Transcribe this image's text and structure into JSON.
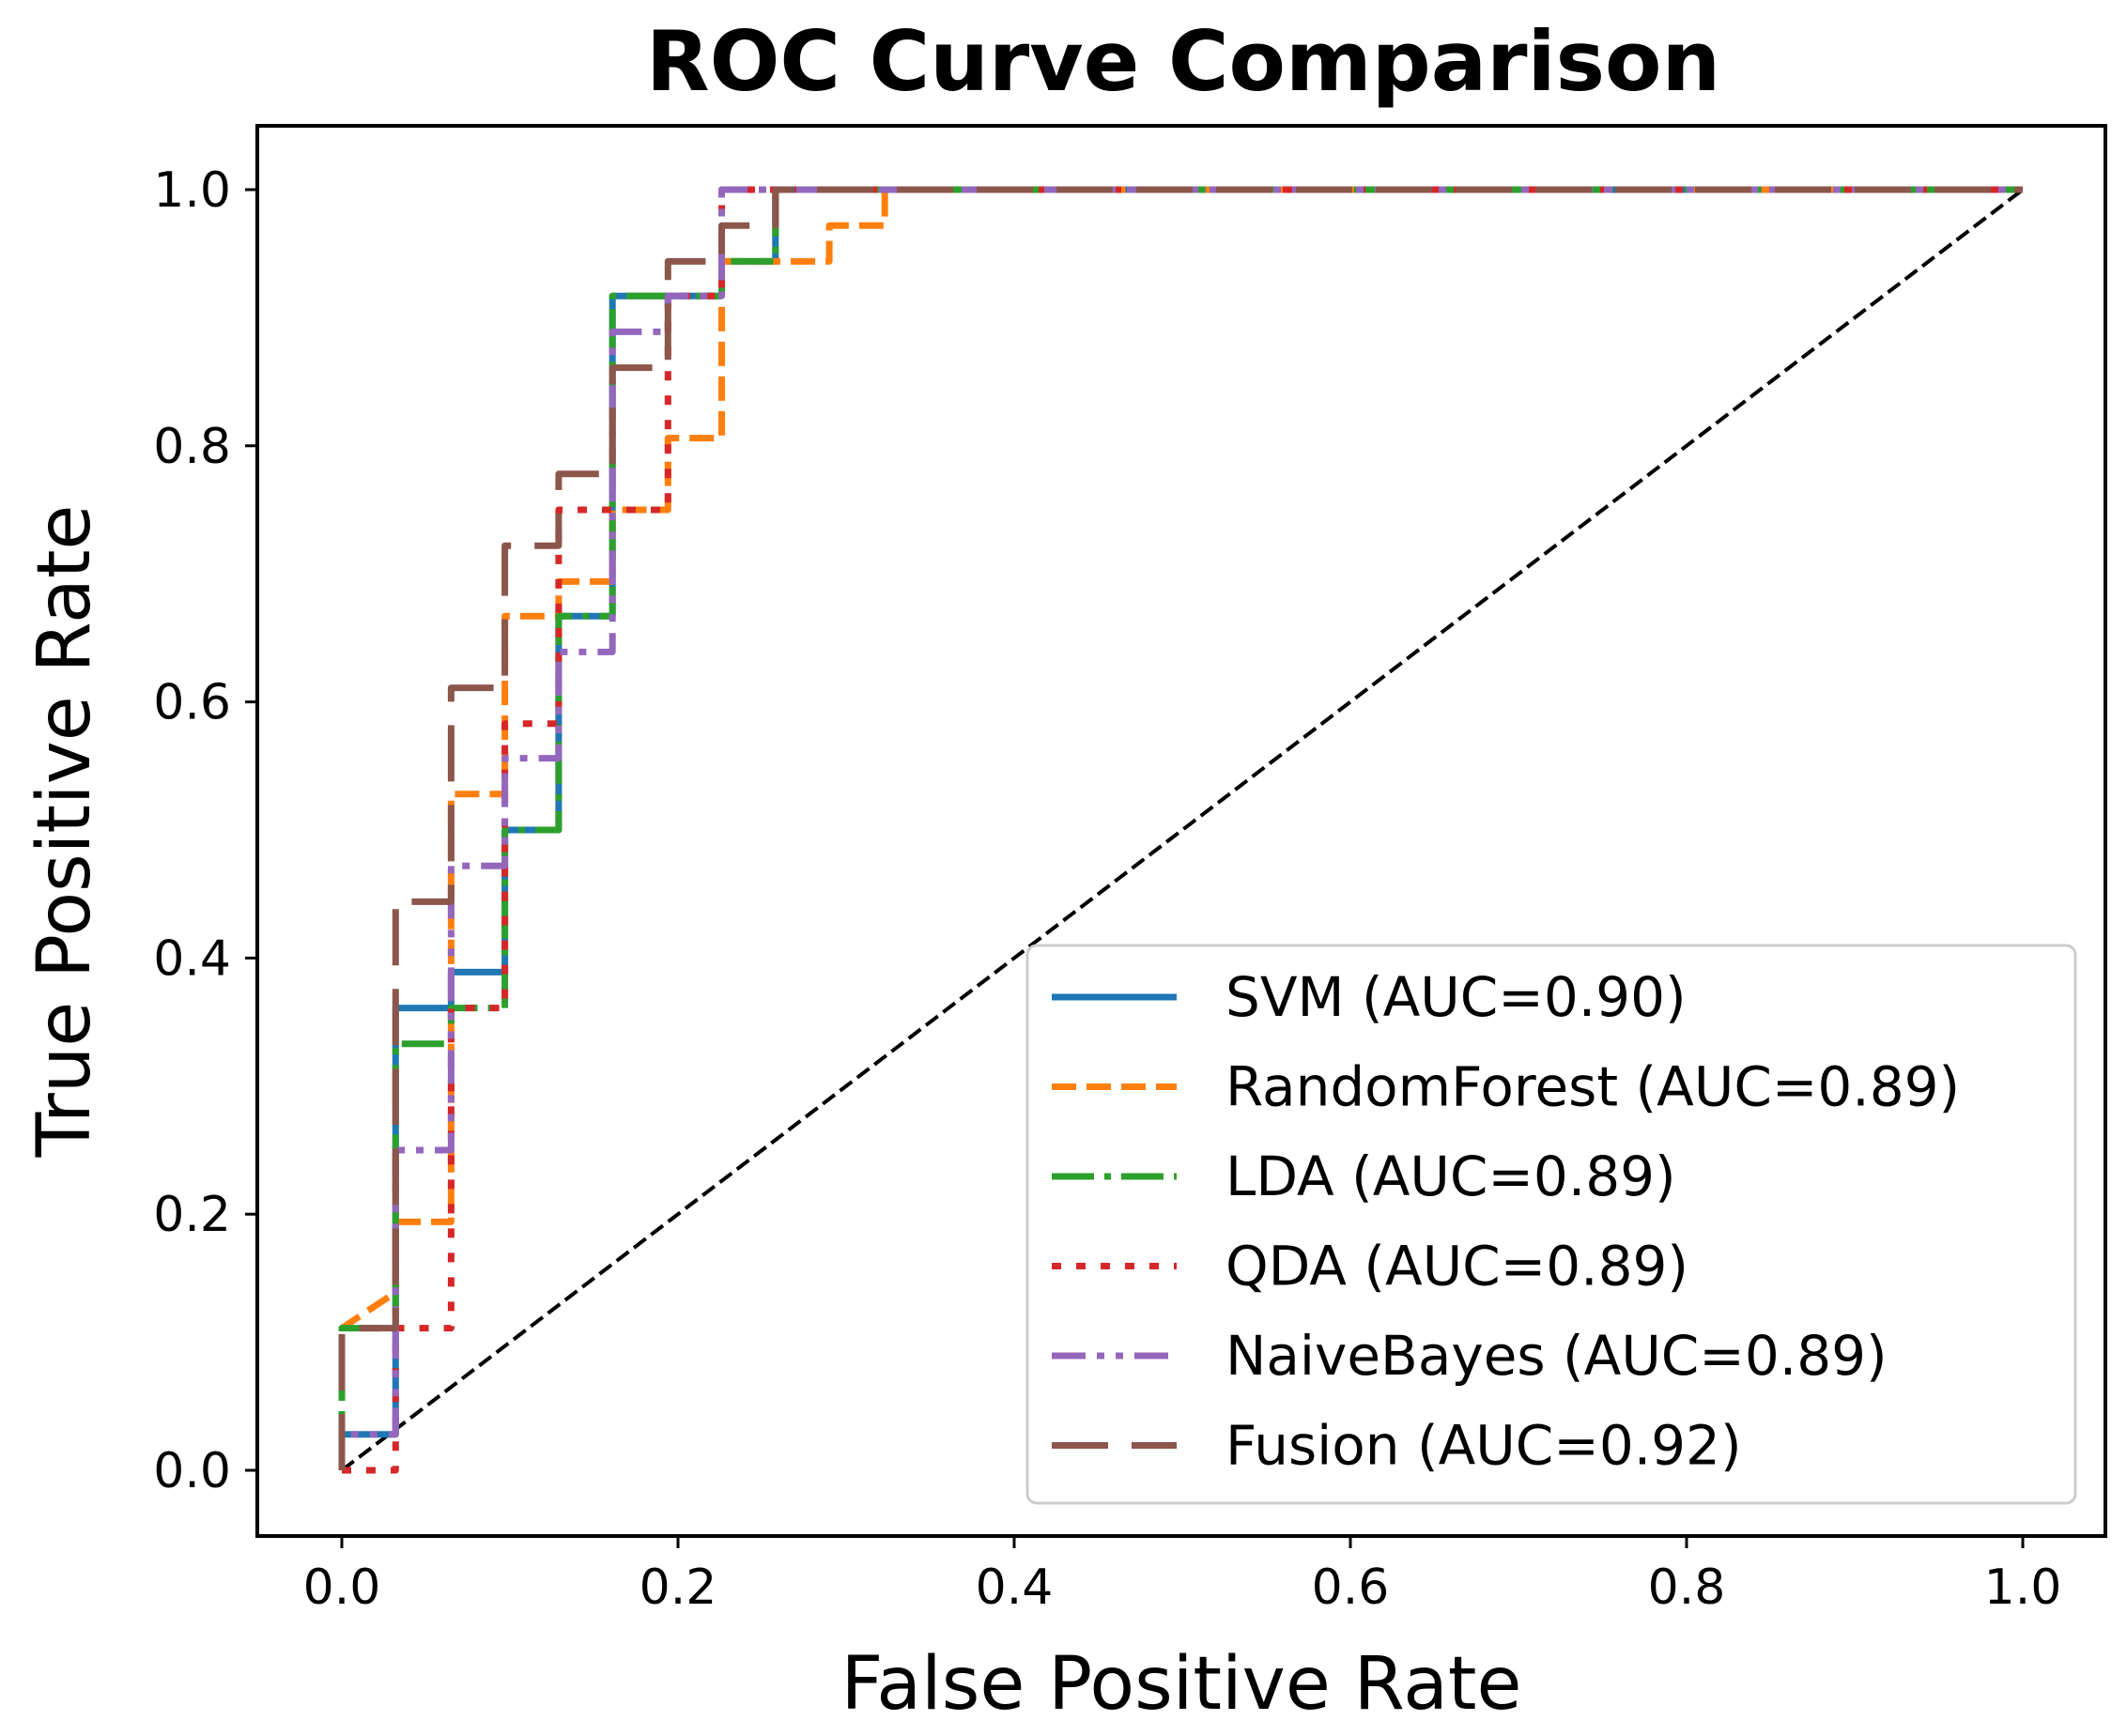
{
  "chart_data": {
    "type": "line",
    "title": "ROC Curve Comparison",
    "xlabel": "False Positive Rate",
    "ylabel": "True Positive Rate",
    "xlim": [
      -0.05,
      1.05
    ],
    "ylim": [
      -0.05,
      1.05
    ],
    "xticks": [
      "0.0",
      "0.2",
      "0.4",
      "0.6",
      "0.8",
      "1.0"
    ],
    "yticks": [
      "0.0",
      "0.2",
      "0.4",
      "0.6",
      "0.8",
      "1.0"
    ],
    "grid": false,
    "legend_position": "lower-right",
    "diagonal": {
      "x": [
        0,
        1
      ],
      "y": [
        0,
        1
      ],
      "color": "#000000",
      "style": "dashed"
    },
    "series": [
      {
        "name": "SVM (AUC=0.90)",
        "color": "#1f77b4",
        "style": "solid",
        "x": [
          0,
          0,
          0.032,
          0.032,
          0.065,
          0.065,
          0.097,
          0.097,
          0.129,
          0.129,
          0.161,
          0.161,
          0.226,
          0.226,
          0.258,
          0.258,
          1
        ],
        "y": [
          0,
          0.028,
          0.028,
          0.361,
          0.361,
          0.389,
          0.389,
          0.5,
          0.5,
          0.667,
          0.667,
          0.917,
          0.917,
          0.944,
          0.944,
          1,
          1
        ]
      },
      {
        "name": "RandomForest (AUC=0.89)",
        "color": "#ff7f0e",
        "style": "dashed",
        "x": [
          0,
          0,
          0.032,
          0.032,
          0.065,
          0.065,
          0.097,
          0.097,
          0.129,
          0.129,
          0.161,
          0.161,
          0.194,
          0.194,
          0.226,
          0.226,
          0.29,
          0.29,
          0.323,
          0.323,
          1
        ],
        "y": [
          0,
          0.111,
          0.139,
          0.194,
          0.194,
          0.528,
          0.528,
          0.667,
          0.667,
          0.694,
          0.694,
          0.75,
          0.75,
          0.806,
          0.806,
          0.944,
          0.944,
          0.972,
          0.972,
          1,
          1
        ]
      },
      {
        "name": "LDA (AUC=0.89)",
        "color": "#2ca02c",
        "style": "dashdot",
        "x": [
          0,
          0,
          0.032,
          0.032,
          0.065,
          0.065,
          0.097,
          0.097,
          0.129,
          0.129,
          0.161,
          0.161,
          0.226,
          0.226,
          0.258,
          0.258,
          1
        ],
        "y": [
          0,
          0.111,
          0.111,
          0.333,
          0.333,
          0.361,
          0.361,
          0.5,
          0.5,
          0.667,
          0.667,
          0.917,
          0.917,
          0.944,
          0.944,
          1,
          1
        ]
      },
      {
        "name": "QDA (AUC=0.89)",
        "color": "#d62728",
        "style": "dotted",
        "x": [
          0,
          0.032,
          0.032,
          0.065,
          0.065,
          0.097,
          0.097,
          0.129,
          0.129,
          0.194,
          0.194,
          0.226,
          0.226,
          1
        ],
        "y": [
          0,
          0,
          0.111,
          0.111,
          0.361,
          0.361,
          0.583,
          0.583,
          0.75,
          0.75,
          0.917,
          0.917,
          1,
          1
        ]
      },
      {
        "name": "NaiveBayes (AUC=0.89)",
        "color": "#9467bd",
        "style": "dashdotdot",
        "x": [
          0,
          0,
          0.032,
          0.032,
          0.065,
          0.065,
          0.097,
          0.097,
          0.129,
          0.129,
          0.161,
          0.161,
          0.194,
          0.194,
          0.226,
          0.226,
          1
        ],
        "y": [
          0,
          0.028,
          0.028,
          0.25,
          0.25,
          0.472,
          0.472,
          0.556,
          0.556,
          0.639,
          0.639,
          0.889,
          0.889,
          0.917,
          0.917,
          1,
          1
        ]
      },
      {
        "name": "Fusion (AUC=0.92)",
        "color": "#8c564b",
        "style": "longdash",
        "x": [
          0,
          0,
          0.032,
          0.032,
          0.065,
          0.065,
          0.097,
          0.097,
          0.129,
          0.129,
          0.161,
          0.161,
          0.194,
          0.194,
          0.226,
          0.226,
          0.258,
          0.258,
          1
        ],
        "y": [
          0,
          0.111,
          0.111,
          0.444,
          0.444,
          0.611,
          0.611,
          0.722,
          0.722,
          0.778,
          0.778,
          0.861,
          0.861,
          0.944,
          0.944,
          0.972,
          0.972,
          1,
          1
        ]
      }
    ]
  }
}
